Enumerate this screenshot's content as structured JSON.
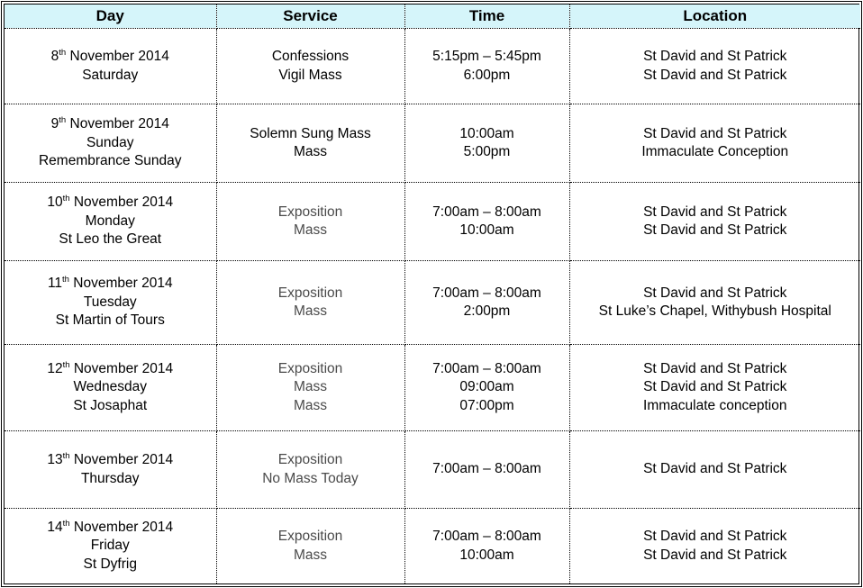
{
  "table": {
    "columns": [
      "Day",
      "Service",
      "Time",
      "Location"
    ],
    "colors": {
      "header_bg": "#d5f5fa",
      "border": "#000000",
      "text": "#000000",
      "muted_text": "#4a4a4a"
    },
    "rows": [
      {
        "date": {
          "num": "8",
          "ordinal": "th",
          "rest": " November 2014"
        },
        "day_lines": [
          "Saturday"
        ],
        "service_lines": [
          "Confessions",
          "Vigil Mass"
        ],
        "service_muted": false,
        "time_lines": [
          "5:15pm – 5:45pm",
          "6:00pm"
        ],
        "location_lines": [
          "St David and St Patrick",
          "St David and St Patrick"
        ]
      },
      {
        "date": {
          "num": "9",
          "ordinal": "th",
          "rest": " November 2014"
        },
        "day_lines": [
          "Sunday",
          "Remembrance Sunday"
        ],
        "service_lines": [
          "Solemn Sung Mass",
          "Mass"
        ],
        "service_muted": false,
        "time_lines": [
          "10:00am",
          "5:00pm"
        ],
        "location_lines": [
          "St David and St Patrick",
          "Immaculate Conception"
        ]
      },
      {
        "date": {
          "num": "10",
          "ordinal": "th",
          "rest": " November 2014"
        },
        "day_lines": [
          "Monday",
          "St Leo the Great"
        ],
        "service_lines": [
          "Exposition",
          "Mass"
        ],
        "service_muted": true,
        "time_lines": [
          "7:00am – 8:00am",
          "10:00am"
        ],
        "location_lines": [
          "St David and St Patrick",
          "St David and St Patrick"
        ]
      },
      {
        "date": {
          "num": "11",
          "ordinal": "th",
          "rest": " November 2014"
        },
        "day_lines": [
          "Tuesday",
          "St Martin of Tours"
        ],
        "service_lines": [
          "Exposition",
          "Mass"
        ],
        "service_muted": true,
        "time_lines": [
          "7:00am – 8:00am",
          "2:00pm"
        ],
        "location_lines": [
          "St David and St Patrick",
          "St Luke’s Chapel, Withybush Hospital"
        ]
      },
      {
        "date": {
          "num": "12",
          "ordinal": "th",
          "rest": " November 2014"
        },
        "day_lines": [
          "Wednesday",
          "St Josaphat"
        ],
        "service_lines": [
          "Exposition",
          "Mass",
          "Mass"
        ],
        "service_muted": true,
        "time_lines": [
          "7:00am – 8:00am",
          "09:00am",
          "07:00pm"
        ],
        "location_lines": [
          "St David and St Patrick",
          "St David and St Patrick",
          "Immaculate conception"
        ]
      },
      {
        "date": {
          "num": "13",
          "ordinal": "th",
          "rest": " November 2014"
        },
        "day_lines": [
          "Thursday"
        ],
        "service_lines": [
          "Exposition",
          "No Mass Today"
        ],
        "service_muted": true,
        "time_lines": [
          "7:00am – 8:00am"
        ],
        "location_lines": [
          "St David and St Patrick"
        ]
      },
      {
        "date": {
          "num": "14",
          "ordinal": "th",
          "rest": " November 2014"
        },
        "day_lines": [
          "Friday",
          "St Dyfrig"
        ],
        "service_lines": [
          "Exposition",
          "Mass"
        ],
        "service_muted": true,
        "time_lines": [
          "7:00am – 8:00am",
          "10:00am"
        ],
        "location_lines": [
          "St David and St Patrick",
          "St David and St Patrick"
        ]
      }
    ]
  }
}
